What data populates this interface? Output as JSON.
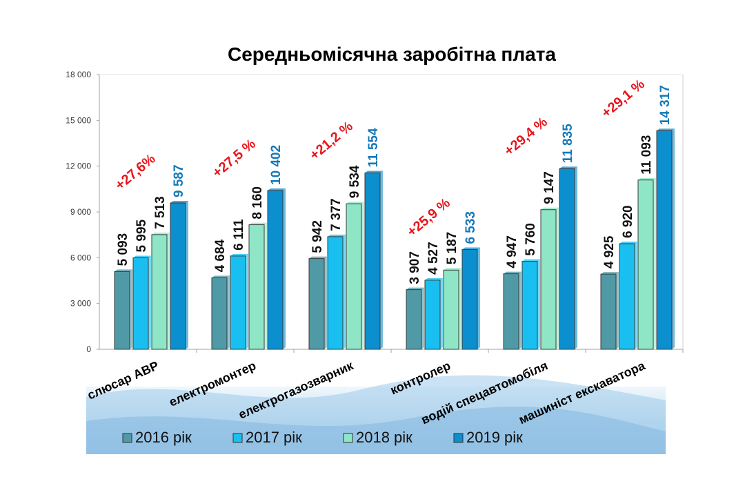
{
  "chart_data": {
    "type": "bar",
    "title": "Середньомісячна  заробітна  плата",
    "categories": [
      "слюсар АВР",
      "електромонтер",
      "електрогазозварник",
      "контролер",
      "водій спецавтомобіля",
      "машиніст екскаватора"
    ],
    "series": [
      {
        "name": "2016 рік",
        "values": [
          5093,
          4684,
          5942,
          3907,
          4947,
          4925
        ],
        "labels": [
          "5 093",
          "4 684",
          "5 942",
          "3 907",
          "4 947",
          "4 925"
        ]
      },
      {
        "name": "2017 рік",
        "values": [
          5995,
          6111,
          7377,
          4527,
          5760,
          6920
        ],
        "labels": [
          "5 995",
          "6 111",
          "7 377",
          "4 527",
          "5 760",
          "6 920"
        ]
      },
      {
        "name": "2018 рік",
        "values": [
          7513,
          8160,
          9534,
          5187,
          9147,
          11093
        ],
        "labels": [
          "7 513",
          "8 160",
          "9 534",
          "5 187",
          "9 147",
          "11 093"
        ]
      },
      {
        "name": "2019 рік",
        "values": [
          9587,
          10402,
          11554,
          6533,
          11835,
          14317
        ],
        "labels": [
          "9 587",
          "10 402",
          "11 554",
          "6 533",
          "11 835",
          "14 317"
        ]
      }
    ],
    "growth_labels": [
      "+27,6%",
      "+27,5 %",
      "+21,2 %",
      "+25,9 %",
      "+29,4 %",
      "+29,1 %"
    ],
    "yticks": [
      0,
      3000,
      6000,
      9000,
      12000,
      15000,
      18000
    ],
    "ytick_labels": [
      "0",
      "3 000",
      "6 000",
      "9 000",
      "12 000",
      "15 000",
      "18 000"
    ],
    "ylim": [
      0,
      18000
    ],
    "grid": false,
    "legend_position": "bottom",
    "colors": {
      "2016": "#4f9aa6",
      "2017": "#19bff0",
      "2018": "#8fe6c6",
      "2019": "#0b8fcf",
      "growth": "#e8141a",
      "label_black": "#111111",
      "label_blue": "#1479b8"
    }
  }
}
